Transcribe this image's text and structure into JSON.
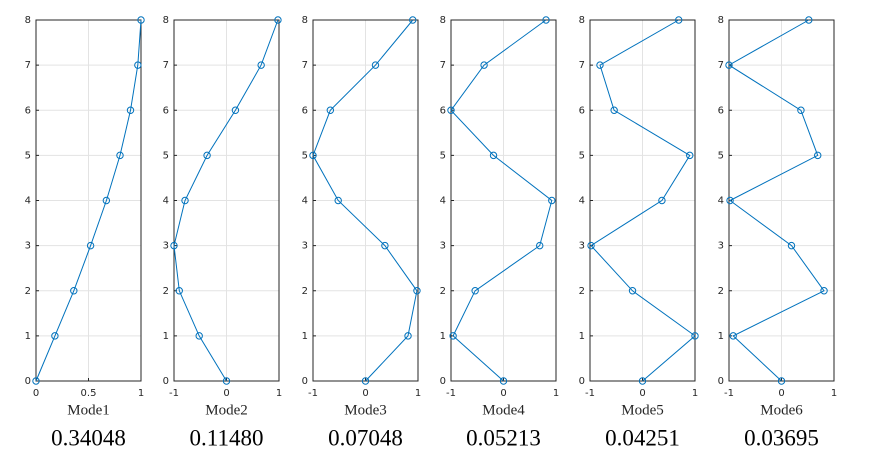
{
  "chart_data": [
    {
      "type": "line",
      "xlabel": "Mode1",
      "annotation": "0.34048",
      "color": "#0072bd",
      "marker": "circle",
      "grid": true,
      "x": [
        0,
        0.18,
        0.36,
        0.52,
        0.67,
        0.8,
        0.9,
        0.97,
        1
      ],
      "values": [
        0,
        1,
        2,
        3,
        4,
        5,
        6,
        7,
        8
      ],
      "xlim": [
        0,
        1
      ],
      "xticks": [
        0,
        0.5,
        1
      ],
      "ylim": [
        0,
        8
      ],
      "yticks": [
        0,
        1,
        2,
        3,
        4,
        5,
        6,
        7,
        8
      ]
    },
    {
      "type": "line",
      "xlabel": "Mode2",
      "annotation": "0.11480",
      "color": "#0072bd",
      "marker": "circle",
      "grid": true,
      "x": [
        0,
        -0.52,
        -0.9,
        -1,
        -0.79,
        -0.37,
        0.17,
        0.66,
        0.98
      ],
      "values": [
        0,
        1,
        2,
        3,
        4,
        5,
        6,
        7,
        8
      ],
      "xlim": [
        -1,
        1
      ],
      "xticks": [
        -1,
        0,
        1
      ],
      "ylim": [
        0,
        8
      ],
      "yticks": [
        0,
        1,
        2,
        3,
        4,
        5,
        6,
        7,
        8
      ]
    },
    {
      "type": "line",
      "xlabel": "Mode3",
      "annotation": "0.07048",
      "color": "#0072bd",
      "marker": "circle",
      "grid": true,
      "x": [
        0,
        0.81,
        0.98,
        0.37,
        -0.52,
        -1,
        -0.67,
        0.19,
        0.9
      ],
      "values": [
        0,
        1,
        2,
        3,
        4,
        5,
        6,
        7,
        8
      ],
      "xlim": [
        -1,
        1
      ],
      "xticks": [
        -1,
        0,
        1
      ],
      "ylim": [
        0,
        8
      ],
      "yticks": [
        0,
        1,
        2,
        3,
        4,
        5,
        6,
        7,
        8
      ]
    },
    {
      "type": "line",
      "xlabel": "Mode4",
      "annotation": "0.05213",
      "color": "#0072bd",
      "marker": "circle",
      "grid": true,
      "x": [
        0,
        -0.96,
        -0.54,
        0.69,
        0.92,
        -0.19,
        -1,
        -0.37,
        0.81
      ],
      "values": [
        0,
        1,
        2,
        3,
        4,
        5,
        6,
        7,
        8
      ],
      "xlim": [
        -1,
        1
      ],
      "xticks": [
        -1,
        0,
        1
      ],
      "ylim": [
        0,
        8
      ],
      "yticks": [
        0,
        1,
        2,
        3,
        4,
        5,
        6,
        7,
        8
      ]
    },
    {
      "type": "line",
      "xlabel": "Mode5",
      "annotation": "0.04251",
      "color": "#0072bd",
      "marker": "circle",
      "grid": true,
      "x": [
        0,
        1,
        -0.19,
        -0.98,
        0.37,
        0.9,
        -0.54,
        -0.81,
        0.69
      ],
      "values": [
        0,
        1,
        2,
        3,
        4,
        5,
        6,
        7,
        8
      ],
      "xlim": [
        -1,
        1
      ],
      "xticks": [
        -1,
        0,
        1
      ],
      "ylim": [
        0,
        8
      ],
      "yticks": [
        0,
        1,
        2,
        3,
        4,
        5,
        6,
        7,
        8
      ]
    },
    {
      "type": "line",
      "xlabel": "Mode6",
      "annotation": "0.03695",
      "color": "#0072bd",
      "marker": "circle",
      "grid": true,
      "x": [
        0,
        -0.92,
        0.81,
        0.19,
        -0.98,
        0.69,
        0.37,
        -1,
        0.52
      ],
      "values": [
        0,
        1,
        2,
        3,
        4,
        5,
        6,
        7,
        8
      ],
      "xlim": [
        -1,
        1
      ],
      "xticks": [
        -1,
        0,
        1
      ],
      "ylim": [
        0,
        8
      ],
      "yticks": [
        0,
        1,
        2,
        3,
        4,
        5,
        6,
        7,
        8
      ]
    }
  ]
}
